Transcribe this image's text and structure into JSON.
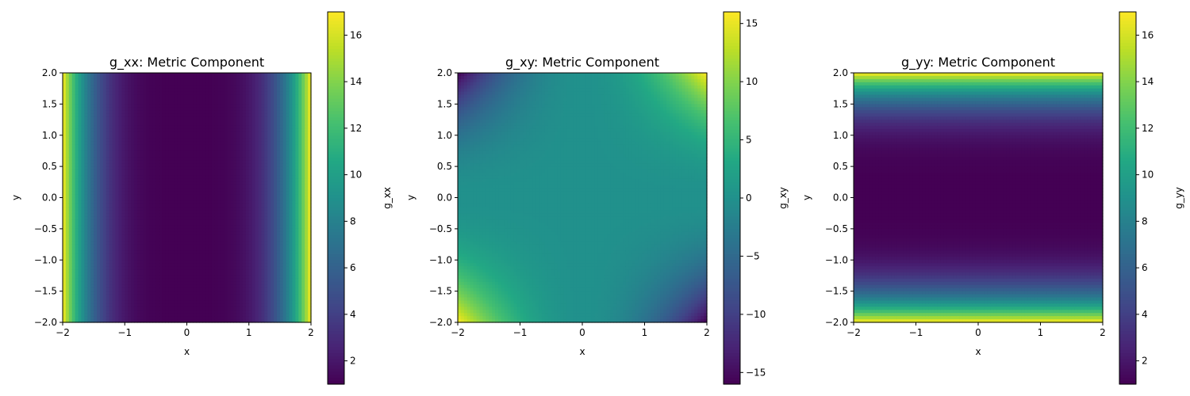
{
  "chart_data": [
    {
      "type": "heatmap",
      "title": "g_xx: Metric Component",
      "xlabel": "x",
      "ylabel": "y",
      "colorbar_label": "g_xx",
      "formula": "1 + x^4",
      "xlim": [
        -2,
        2
      ],
      "ylim": [
        -2,
        2
      ],
      "xticks": [
        "−2",
        "−1",
        "0",
        "1",
        "2"
      ],
      "xtick_values": [
        -2,
        -1,
        0,
        1,
        2
      ],
      "yticks": [
        "−2.0",
        "−1.5",
        "−1.0",
        "−0.5",
        "0.0",
        "0.5",
        "1.0",
        "1.5",
        "2.0"
      ],
      "ytick_values": [
        -2,
        -1.5,
        -1,
        -0.5,
        0,
        0.5,
        1,
        1.5,
        2
      ],
      "colorscale": "viridis",
      "vmin": 1,
      "vmax": 17,
      "cbar_ticks": [
        "2",
        "4",
        "6",
        "8",
        "10",
        "12",
        "14",
        "16"
      ],
      "cbar_tick_values": [
        2,
        4,
        6,
        8,
        10,
        12,
        14,
        16
      ]
    },
    {
      "type": "heatmap",
      "title": "g_xy: Metric Component",
      "xlabel": "x",
      "ylabel": "y",
      "colorbar_label": "g_xy",
      "formula": "x^2 * y^2 * sign(x*y)",
      "xlim": [
        -2,
        2
      ],
      "ylim": [
        -2,
        2
      ],
      "xticks": [
        "−2",
        "−1",
        "0",
        "1",
        "2"
      ],
      "xtick_values": [
        -2,
        -1,
        0,
        1,
        2
      ],
      "yticks": [
        "−2.0",
        "−1.5",
        "−1.0",
        "−0.5",
        "0.0",
        "0.5",
        "1.0",
        "1.5",
        "2.0"
      ],
      "ytick_values": [
        -2,
        -1.5,
        -1,
        -0.5,
        0,
        0.5,
        1,
        1.5,
        2
      ],
      "colorscale": "viridis",
      "vmin": -16,
      "vmax": 16,
      "cbar_ticks": [
        "−15",
        "−10",
        "−5",
        "0",
        "5",
        "10",
        "15"
      ],
      "cbar_tick_values": [
        -15,
        -10,
        -5,
        0,
        5,
        10,
        15
      ]
    },
    {
      "type": "heatmap",
      "title": "g_yy: Metric Component",
      "xlabel": "x",
      "ylabel": "y",
      "colorbar_label": "g_yy",
      "formula": "1 + y^4",
      "xlim": [
        -2,
        2
      ],
      "ylim": [
        -2,
        2
      ],
      "xticks": [
        "−2",
        "−1",
        "0",
        "1",
        "2"
      ],
      "xtick_values": [
        -2,
        -1,
        0,
        1,
        2
      ],
      "yticks": [
        "−2.0",
        "−1.5",
        "−1.0",
        "−0.5",
        "0.0",
        "0.5",
        "1.0",
        "1.5",
        "2.0"
      ],
      "ytick_values": [
        -2,
        -1.5,
        -1,
        -0.5,
        0,
        0.5,
        1,
        1.5,
        2
      ],
      "colorscale": "viridis",
      "vmin": 1,
      "vmax": 17,
      "cbar_ticks": [
        "2",
        "4",
        "6",
        "8",
        "10",
        "12",
        "14",
        "16"
      ],
      "cbar_tick_values": [
        2,
        4,
        6,
        8,
        10,
        12,
        14,
        16
      ]
    }
  ]
}
